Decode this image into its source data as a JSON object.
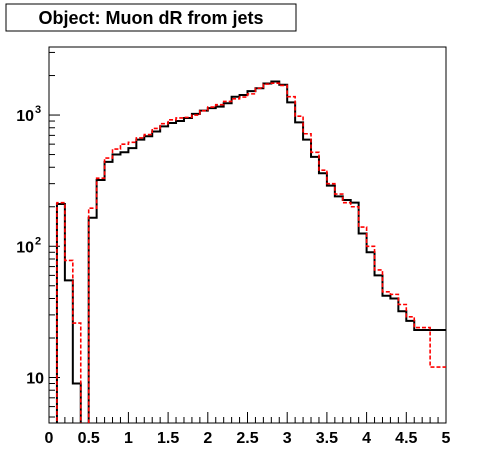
{
  "chart_data": {
    "type": "line",
    "title": "Object: Muon dR from jets",
    "xlabel": "",
    "ylabel": "",
    "xlim": [
      0,
      5
    ],
    "ylim": [
      4.5,
      3300
    ],
    "y_scale": "log",
    "grid": false,
    "legend": "none",
    "x_ticks": [
      {
        "value": 0,
        "label": "0"
      },
      {
        "value": 0.5,
        "label": "0.5"
      },
      {
        "value": 1,
        "label": "1"
      },
      {
        "value": 1.5,
        "label": "1.5"
      },
      {
        "value": 2,
        "label": "2"
      },
      {
        "value": 2.5,
        "label": "2.5"
      },
      {
        "value": 3,
        "label": "3"
      },
      {
        "value": 3.5,
        "label": "3.5"
      },
      {
        "value": 4,
        "label": "4"
      },
      {
        "value": 4.5,
        "label": "4.5"
      },
      {
        "value": 5,
        "label": "5"
      }
    ],
    "y_ticks": [
      {
        "value": 10,
        "base": "10",
        "exp": ""
      },
      {
        "value": 100,
        "base": "10",
        "exp": "2"
      },
      {
        "value": 1000,
        "base": "10",
        "exp": "3"
      }
    ],
    "bin_edges": [
      0,
      0.1,
      0.2,
      0.3,
      0.4,
      0.5,
      0.6,
      0.7,
      0.8,
      0.9,
      1.0,
      1.1,
      1.2,
      1.3,
      1.4,
      1.5,
      1.6,
      1.7,
      1.8,
      1.9,
      2.0,
      2.1,
      2.2,
      2.3,
      2.4,
      2.5,
      2.6,
      2.7,
      2.8,
      2.9,
      3.0,
      3.1,
      3.2,
      3.3,
      3.4,
      3.5,
      3.6,
      3.7,
      3.8,
      3.9,
      4.0,
      4.1,
      4.2,
      4.3,
      4.4,
      4.5,
      4.6,
      4.7,
      4.8,
      4.9,
      5.0
    ],
    "series": [
      {
        "color": "#000000",
        "style": "solid",
        "values": [
          0,
          210,
          55,
          9,
          0,
          165,
          320,
          440,
          500,
          520,
          560,
          650,
          690,
          750,
          820,
          870,
          900,
          950,
          1020,
          1080,
          1130,
          1160,
          1230,
          1380,
          1420,
          1520,
          1600,
          1740,
          1800,
          1700,
          1250,
          880,
          650,
          480,
          360,
          290,
          240,
          225,
          215,
          125,
          90,
          60,
          42,
          40,
          32,
          27,
          23,
          23,
          23,
          23
        ]
      },
      {
        "color": "#ff0000",
        "style": "dashed",
        "values": [
          0,
          215,
          78,
          26,
          0,
          195,
          330,
          470,
          550,
          600,
          620,
          670,
          710,
          790,
          860,
          920,
          950,
          960,
          1000,
          1080,
          1150,
          1200,
          1270,
          1330,
          1370,
          1450,
          1600,
          1720,
          1750,
          1680,
          1380,
          980,
          720,
          520,
          380,
          300,
          250,
          215,
          200,
          140,
          100,
          66,
          45,
          43,
          36,
          29,
          24,
          24,
          12,
          12
        ]
      }
    ]
  }
}
